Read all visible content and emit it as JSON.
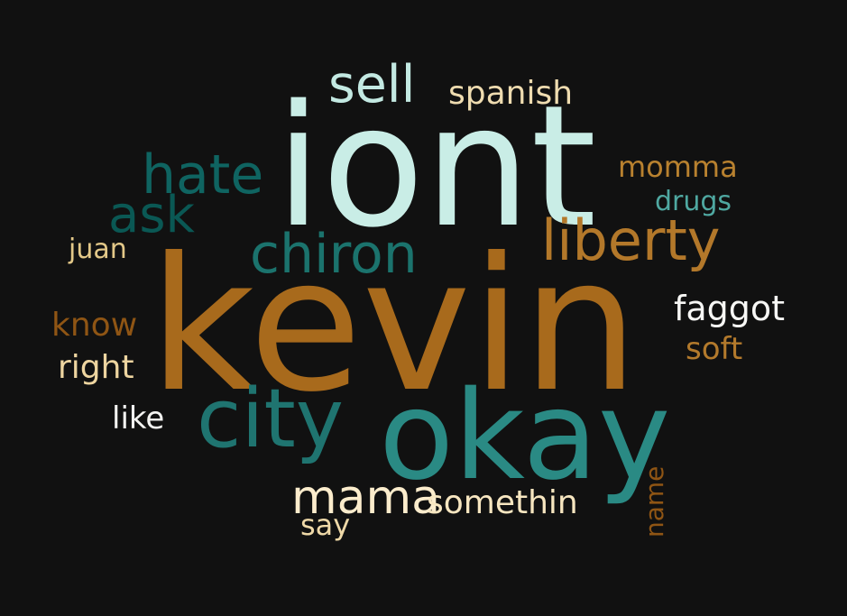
{
  "cloud": {
    "background": "#111111",
    "words": {
      "iont": {
        "text": "iont",
        "color": "#c9ede6"
      },
      "kevin": {
        "text": "kevin",
        "color": "#a86a1c"
      },
      "okay": {
        "text": "okay",
        "color": "#2a8a84"
      },
      "city": {
        "text": "city",
        "color": "#1f7470"
      },
      "liberty": {
        "text": "liberty",
        "color": "#b3782a"
      },
      "chiron": {
        "text": "chiron",
        "color": "#1b736d"
      },
      "hate": {
        "text": "hate",
        "color": "#0f6461"
      },
      "ask": {
        "text": "ask",
        "color": "#0a5854"
      },
      "sell": {
        "text": "sell",
        "color": "#c3e9e2"
      },
      "spanish": {
        "text": "spanish",
        "color": "#efdcb0"
      },
      "mama": {
        "text": "mama",
        "color": "#fbeccc"
      },
      "somethin": {
        "text": "somethin",
        "color": "#f7e6c0"
      },
      "say": {
        "text": "say",
        "color": "#efd9a8"
      },
      "faggot": {
        "text": "faggot",
        "color": "#f7f7f5"
      },
      "soft": {
        "text": "soft",
        "color": "#b37a2c"
      },
      "momma": {
        "text": "momma",
        "color": "#b8812f"
      },
      "drugs": {
        "text": "drugs",
        "color": "#4fa8a1"
      },
      "know": {
        "text": "know",
        "color": "#8f5514"
      },
      "right": {
        "text": "right",
        "color": "#eed5a0"
      },
      "like": {
        "text": "like",
        "color": "#f3f3f1"
      },
      "juan": {
        "text": "juan",
        "color": "#e3c888"
      },
      "name": {
        "text": "name",
        "color": "#8f5514"
      }
    }
  }
}
